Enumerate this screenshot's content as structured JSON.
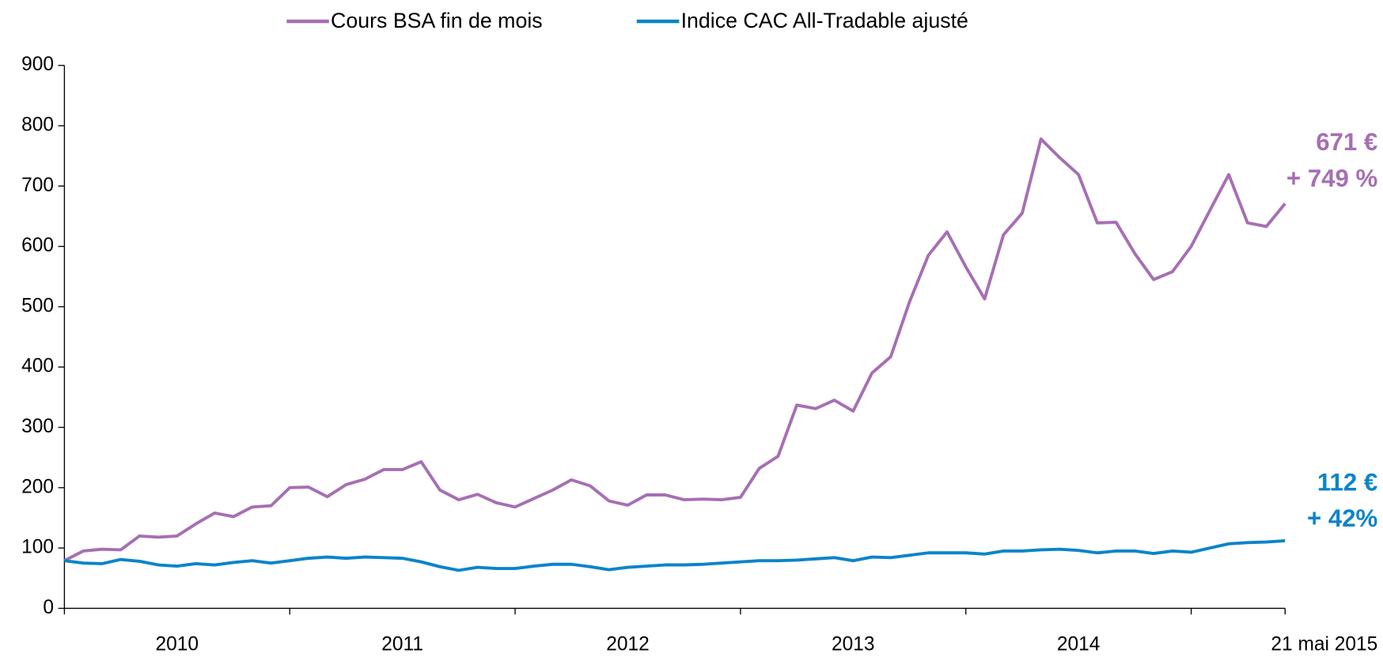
{
  "chart_data": {
    "type": "line",
    "x_labels": [
      "2010",
      "2011",
      "2012",
      "2013",
      "2014",
      "21 mai 2015"
    ],
    "series": [
      {
        "name": "Cours BSA fin de mois",
        "color": "#a66fb3",
        "values": [
          79,
          95,
          98,
          97,
          120,
          118,
          120,
          140,
          158,
          152,
          168,
          170,
          200,
          201,
          185,
          205,
          214,
          230,
          230,
          243,
          196,
          180,
          189,
          175,
          168,
          182,
          196,
          213,
          203,
          178,
          171,
          188,
          188,
          180,
          181,
          180,
          184,
          232,
          252,
          337,
          331,
          345,
          327,
          390,
          417,
          508,
          585,
          624,
          566,
          513,
          619,
          655,
          778,
          747,
          719,
          639,
          640,
          588,
          545,
          558,
          600,
          660,
          719,
          639,
          633,
          671
        ]
      },
      {
        "name": "Indice CAC All-Tradable ajusté",
        "color": "#0b84c9",
        "values": [
          79,
          75,
          74,
          81,
          78,
          72,
          70,
          74,
          72,
          76,
          79,
          75,
          79,
          83,
          85,
          83,
          85,
          84,
          83,
          77,
          69,
          63,
          68,
          66,
          66,
          70,
          73,
          73,
          69,
          64,
          68,
          70,
          72,
          72,
          73,
          75,
          77,
          79,
          79,
          80,
          82,
          84,
          79,
          85,
          84,
          88,
          92,
          92,
          92,
          90,
          95,
          95,
          97,
          98,
          96,
          92,
          95,
          95,
          91,
          95,
          93,
          100,
          107,
          109,
          110,
          112
        ]
      }
    ],
    "annotations": [
      {
        "series": 0,
        "lines": [
          "671 €",
          "+ 749 %"
        ]
      },
      {
        "series": 1,
        "lines": [
          "112 €",
          "+ 42%"
        ]
      }
    ],
    "ylim": [
      0,
      900
    ],
    "yticks": [
      0,
      100,
      200,
      300,
      400,
      500,
      600,
      700,
      800,
      900
    ]
  }
}
